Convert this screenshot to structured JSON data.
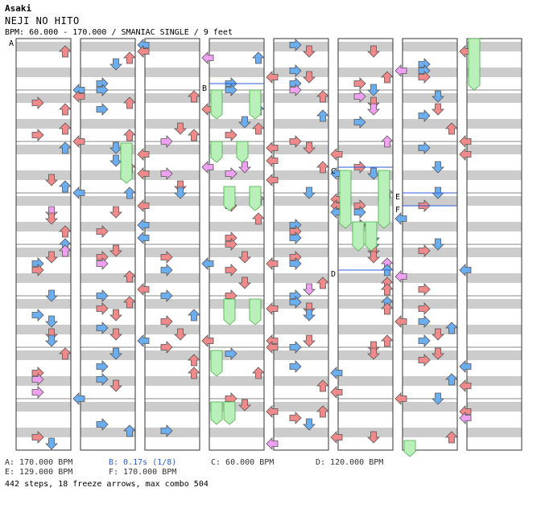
{
  "header": {
    "author": "Asaki",
    "title": "NEJI NO HITO",
    "bpm_line": "BPM: 60.000 - 170.000 / SMANIAC SINGLE / 9 feet"
  },
  "markers": [
    "A",
    "B",
    "C",
    "D",
    "E",
    "F"
  ],
  "legend": [
    {
      "text": "A: 170.000 BPM",
      "color": "#333333"
    },
    {
      "text": "B: 0.17s (1/8)",
      "color": "#2a5bd7"
    },
    {
      "text": "C: 60.000 BPM",
      "color": "#333333"
    },
    {
      "text": "D: 120.000 BPM",
      "color": "#333333"
    },
    {
      "text": "E: 129.000 BPM",
      "color": "#333333"
    },
    {
      "text": "F: 170.000 BPM",
      "color": "#333333"
    }
  ],
  "footer": "442 steps, 18 freeze arrows, max combo 504",
  "colors": {
    "red_arrow": "#f08a8a",
    "blue_arrow": "#6aaef0",
    "pink_arrow": "#f0a0f0",
    "freeze": "#b9f0b9",
    "stripe": "#cccccc",
    "border": "#333333",
    "bpm_line": "#2a5bd7"
  }
}
